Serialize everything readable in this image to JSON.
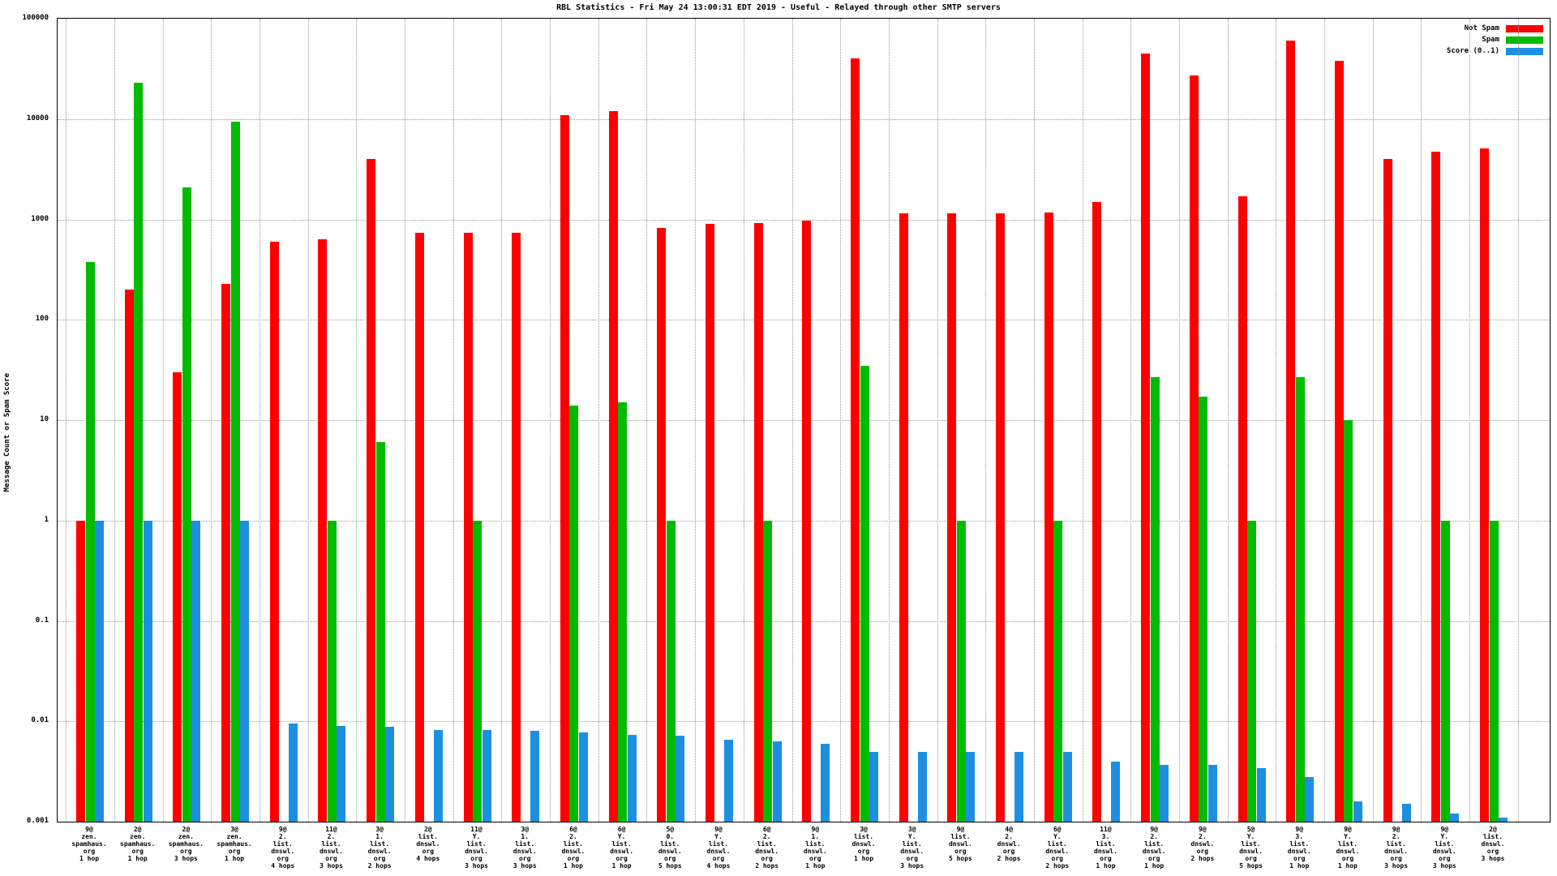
{
  "chart_data": {
    "type": "bar",
    "scale": "log",
    "title": "RBL Statistics - Fri May 24 13:00:31 EDT 2019 - Useful - Relayed through other SMTP servers",
    "ylabel": "Message Count or Spam Score",
    "xlabel": "",
    "ylim": [
      0.001,
      100000
    ],
    "grid": true,
    "legend_position": "top-right",
    "y_ticks": [
      "100000",
      "10000",
      "1000",
      "100",
      "10",
      "1",
      "0.1",
      "0.01",
      "0.001"
    ],
    "categories": [
      [
        "9@",
        "zen.",
        "spamhaus.",
        "org",
        "1 hop"
      ],
      [
        "2@",
        "zen.",
        "spamhaus.",
        "org",
        "1 hop"
      ],
      [
        "2@",
        "zen.",
        "spamhaus.",
        "org",
        "3 hops"
      ],
      [
        "3@",
        "zen.",
        "spamhaus.",
        "org",
        "1 hop"
      ],
      [
        "9@",
        "2.",
        "list.",
        "dnswl.",
        "org",
        "4 hops"
      ],
      [
        "11@",
        "2.",
        "list.",
        "dnswl.",
        "org",
        "3 hops"
      ],
      [
        "3@",
        "1.",
        "list.",
        "dnswl.",
        "org",
        "2 hops"
      ],
      [
        "2@",
        "list.",
        "dnswl.",
        "org",
        "4 hops"
      ],
      [
        "11@",
        "Y.",
        "list.",
        "dnswl.",
        "org",
        "3 hops"
      ],
      [
        "3@",
        "1.",
        "list.",
        "dnswl.",
        "org",
        "3 hops"
      ],
      [
        "6@",
        "2.",
        "list.",
        "dnswl.",
        "org",
        "1 hop"
      ],
      [
        "6@",
        "Y.",
        "list.",
        "dnswl.",
        "org",
        "1 hop"
      ],
      [
        "5@",
        "0.",
        "list.",
        "dnswl.",
        "org",
        "5 hops"
      ],
      [
        "9@",
        "Y.",
        "list.",
        "dnswl.",
        "org",
        "4 hops"
      ],
      [
        "6@",
        "2.",
        "list.",
        "dnswl.",
        "org",
        "2 hops"
      ],
      [
        "9@",
        "1.",
        "list.",
        "dnswl.",
        "org",
        "1 hop"
      ],
      [
        "3@",
        "list.",
        "dnswl.",
        "org",
        "1 hop"
      ],
      [
        "3@",
        "Y.",
        "list.",
        "dnswl.",
        "org",
        "3 hops"
      ],
      [
        "9@",
        "list.",
        "dnswl.",
        "org",
        "5 hops"
      ],
      [
        "4@",
        "2.",
        "dnswl.",
        "org",
        "2 hops"
      ],
      [
        "6@",
        "Y.",
        "list.",
        "dnswl.",
        "org",
        "2 hops"
      ],
      [
        "11@",
        "3.",
        "list.",
        "dnswl.",
        "org",
        "1 hop"
      ],
      [
        "9@",
        "2.",
        "list.",
        "dnswl.",
        "org",
        "1 hop"
      ],
      [
        "9@",
        "2.",
        "dnswl.",
        "org",
        "2 hops"
      ],
      [
        "5@",
        "Y.",
        "list.",
        "dnswl.",
        "org",
        "5 hops"
      ],
      [
        "9@",
        "3.",
        "list.",
        "dnswl.",
        "org",
        "1 hop"
      ],
      [
        "9@",
        "Y.",
        "list.",
        "dnswl.",
        "org",
        "1 hop"
      ],
      [
        "9@",
        "2.",
        "list.",
        "dnswl.",
        "org",
        "3 hops"
      ],
      [
        "9@",
        "Y.",
        "list.",
        "dnswl.",
        "org",
        "3 hops"
      ],
      [
        "2@",
        "list.",
        "dnswl.",
        "org",
        "3 hops"
      ]
    ],
    "series": [
      {
        "name": "Not Spam",
        "color": "#ff0000",
        "values": [
          1,
          200,
          30,
          230,
          600,
          640,
          4000,
          730,
          730,
          740,
          11000,
          12000,
          830,
          900,
          920,
          980,
          40000,
          1150,
          1150,
          1150,
          1180,
          1500,
          45000,
          27000,
          1700,
          60000,
          38000,
          4000,
          4700,
          5100
        ]
      },
      {
        "name": "Spam",
        "color": "#00bb00",
        "values": [
          380,
          23000,
          2100,
          9400,
          null,
          1,
          6,
          null,
          1,
          null,
          14,
          15,
          1,
          null,
          1,
          null,
          35,
          null,
          1,
          null,
          1,
          null,
          27,
          17,
          1,
          27,
          10,
          null,
          1,
          1
        ]
      },
      {
        "name": "Score (0..1)",
        "color": "#1e8fe0",
        "values": [
          1,
          1,
          1,
          1,
          0.0095,
          0.009,
          0.0088,
          0.0082,
          0.0082,
          0.008,
          0.0077,
          0.0073,
          0.0072,
          0.0066,
          0.0063,
          0.006,
          0.005,
          0.005,
          0.005,
          0.005,
          0.005,
          0.004,
          0.0037,
          0.0037,
          0.0034,
          0.0028,
          0.0016,
          0.0015,
          0.0012,
          0.0011
        ]
      }
    ]
  }
}
